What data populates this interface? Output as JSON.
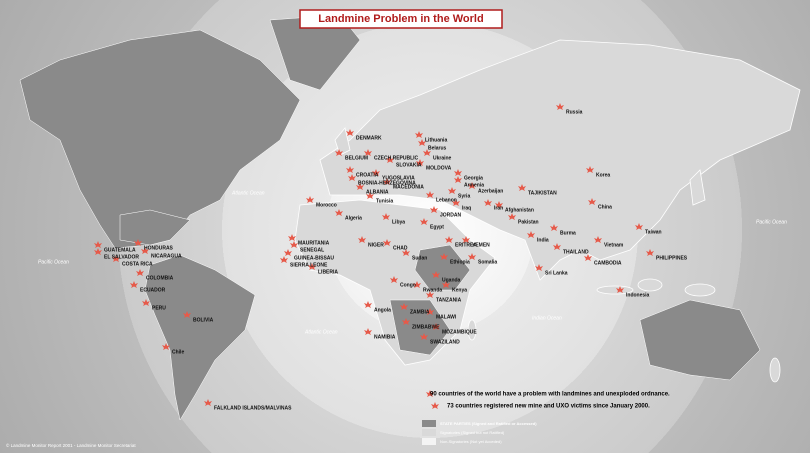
{
  "title": "Landmine Problem in the World",
  "labels": [
    "Russia",
    "BELGIUM",
    "DENMARK",
    "Lithuania",
    "Belarus",
    "Ukraine",
    "MOLDOVA",
    "CZECH REPUBLIC",
    "SLOVAKIA",
    "CROATIA",
    "BOSNIA-HERZEGOVINA",
    "YUGOSLAVIA",
    "MACEDONIA",
    "ALBANIA",
    "Georgia",
    "Armenia",
    "Azerbaijan",
    "TAJIKISTAN",
    "Korea",
    "China",
    "Taiwan",
    "PHILIPPINES",
    "Vietnam",
    "THAILAND",
    "CAMBODIA",
    "Burma",
    "India",
    "Sri Lanka",
    "Indonesia",
    "Afghanistan",
    "Pakistan",
    "Iran",
    "Iraq",
    "JORDAN",
    "Syria",
    "Lebanon",
    "Tunisia",
    "Algeria",
    "Morocco",
    "Libya",
    "Egypt",
    "MAURITANIA",
    "SENEGAL",
    "GUINEA-BISSAU",
    "SIERRA LEONE",
    "LIBERIA",
    "NIGER",
    "CHAD",
    "Sudan",
    "ERITREA",
    "YEMEN",
    "Ethiopia",
    "Somalia",
    "Uganda",
    "Rwanda",
    "Kenya",
    "TANZANIA",
    "Congo",
    "Angola",
    "ZAMBIA",
    "MALAWI",
    "ZIMBABWE",
    "NAMIBIA",
    "MOZAMBIQUE",
    "SWAZILAND",
    "GUATEMALA",
    "HONDURAS",
    "EL SALVADOR",
    "NICARAGUA",
    "COSTA RICA",
    "COLOMBIA",
    "ECUADOR",
    "PERU",
    "BOLIVIA",
    "Chile",
    "FALKLAND ISLANDS/MALVINAS"
  ],
  "oceans": [
    "Atlantic Ocean",
    "Pacific Ocean",
    "Pacific Ocean",
    "Indian Ocean",
    "Atlantic Ocean"
  ],
  "legend": {
    "summary": "90 countries of the world have a problem with landmines and unexploded ordnance.",
    "victims": "73 countries registered new mine and UXO victims since January 2000.",
    "items": [
      "STATE PARTIES (Signed and Ratified or Accessed)",
      "Signatories (Signed but not Ratified)",
      "Non-Signatories (Not yet Acceded)"
    ]
  },
  "source": "© Landmine Monitor Report 2001 - Landmine Monitor Secretariat"
}
